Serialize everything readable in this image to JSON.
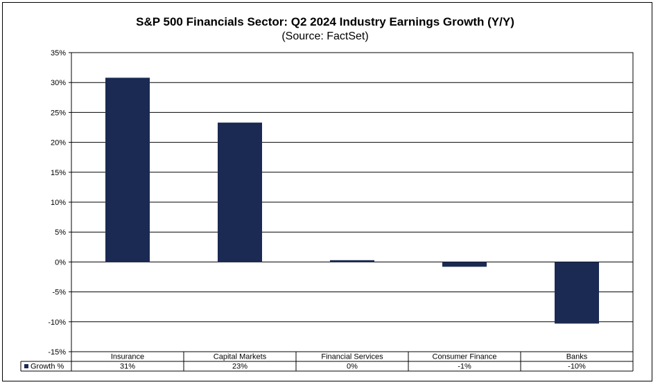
{
  "chart_data": {
    "type": "bar",
    "title": "S&P 500 Financials Sector: Q2 2024 Industry Earnings Growth (Y/Y)",
    "subtitle": "(Source: FactSet)",
    "categories": [
      "Insurance",
      "Capital Markets",
      "Financial Services",
      "Consumer Finance",
      "Banks"
    ],
    "series": [
      {
        "name": "Growth %",
        "values": [
          30.8,
          23.3,
          0.3,
          -0.8,
          -10.3
        ],
        "color": "#1b2a52"
      }
    ],
    "data_table": {
      "row_label": "Growth %",
      "values": [
        "31%",
        "23%",
        "0%",
        "-1%",
        "-10%"
      ]
    },
    "ylim": [
      -15,
      35
    ],
    "yticks": [
      "-15%",
      "-10%",
      "-5%",
      "0%",
      "5%",
      "10%",
      "15%",
      "20%",
      "25%",
      "30%",
      "35%"
    ],
    "grid": true,
    "xlabel": "",
    "ylabel": ""
  }
}
